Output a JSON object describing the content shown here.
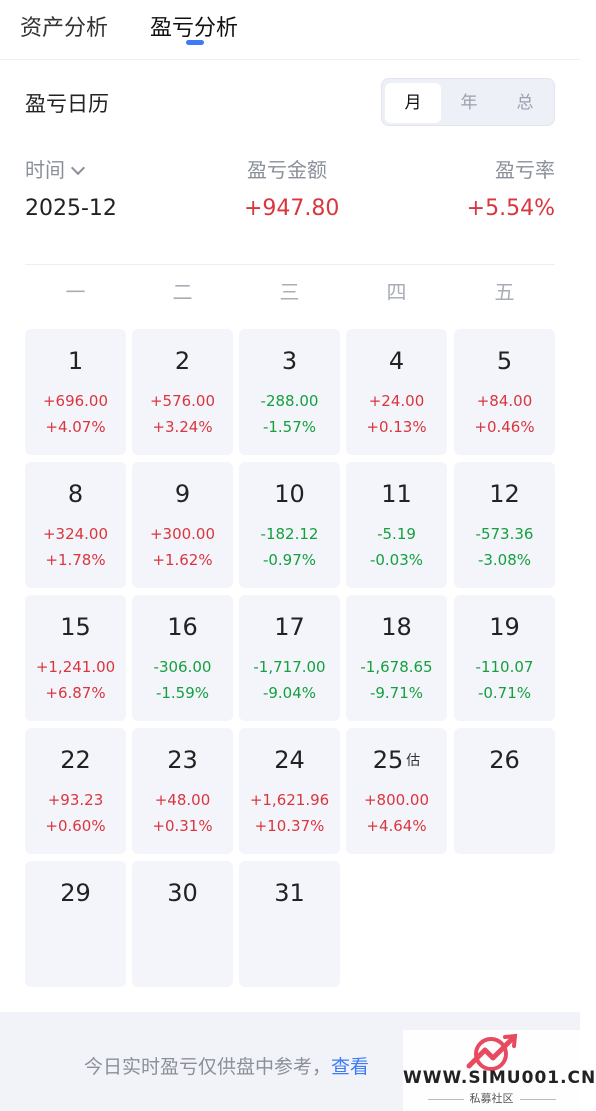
{
  "tabs": [
    {
      "label": "资产分析",
      "active": false
    },
    {
      "label": "盈亏分析",
      "active": true
    }
  ],
  "calendar_section": {
    "title": "盈亏日历",
    "segments": [
      {
        "label": "月",
        "active": true
      },
      {
        "label": "年",
        "active": false
      },
      {
        "label": "总",
        "active": false
      }
    ]
  },
  "summary": {
    "time_label": "时间",
    "time_value": "2025-12",
    "amount_label": "盈亏金额",
    "amount_value": "+947.80",
    "rate_label": "盈亏率",
    "rate_value": "+5.54%"
  },
  "weekdays": [
    "一",
    "二",
    "三",
    "四",
    "五"
  ],
  "days": [
    {
      "day": "1",
      "amount": "+696.00",
      "rate": "+4.07%",
      "trend": "up",
      "badge": ""
    },
    {
      "day": "2",
      "amount": "+576.00",
      "rate": "+3.24%",
      "trend": "up",
      "badge": ""
    },
    {
      "day": "3",
      "amount": "-288.00",
      "rate": "-1.57%",
      "trend": "down",
      "badge": ""
    },
    {
      "day": "4",
      "amount": "+24.00",
      "rate": "+0.13%",
      "trend": "up",
      "badge": ""
    },
    {
      "day": "5",
      "amount": "+84.00",
      "rate": "+0.46%",
      "trend": "up",
      "badge": ""
    },
    {
      "day": "8",
      "amount": "+324.00",
      "rate": "+1.78%",
      "trend": "up",
      "badge": ""
    },
    {
      "day": "9",
      "amount": "+300.00",
      "rate": "+1.62%",
      "trend": "up",
      "badge": ""
    },
    {
      "day": "10",
      "amount": "-182.12",
      "rate": "-0.97%",
      "trend": "down",
      "badge": ""
    },
    {
      "day": "11",
      "amount": "-5.19",
      "rate": "-0.03%",
      "trend": "down",
      "badge": ""
    },
    {
      "day": "12",
      "amount": "-573.36",
      "rate": "-3.08%",
      "trend": "down",
      "badge": ""
    },
    {
      "day": "15",
      "amount": "+1,241.00",
      "rate": "+6.87%",
      "trend": "up",
      "badge": ""
    },
    {
      "day": "16",
      "amount": "-306.00",
      "rate": "-1.59%",
      "trend": "down",
      "badge": ""
    },
    {
      "day": "17",
      "amount": "-1,717.00",
      "rate": "-9.04%",
      "trend": "down",
      "badge": ""
    },
    {
      "day": "18",
      "amount": "-1,678.65",
      "rate": "-9.71%",
      "trend": "down",
      "badge": ""
    },
    {
      "day": "19",
      "amount": "-110.07",
      "rate": "-0.71%",
      "trend": "down",
      "badge": ""
    },
    {
      "day": "22",
      "amount": "+93.23",
      "rate": "+0.60%",
      "trend": "up",
      "badge": ""
    },
    {
      "day": "23",
      "amount": "+48.00",
      "rate": "+0.31%",
      "trend": "up",
      "badge": ""
    },
    {
      "day": "24",
      "amount": "+1,621.96",
      "rate": "+10.37%",
      "trend": "up",
      "badge": ""
    },
    {
      "day": "25",
      "amount": "+800.00",
      "rate": "+4.64%",
      "trend": "up",
      "badge": "估"
    },
    {
      "day": "26",
      "amount": "",
      "rate": "",
      "trend": "none",
      "badge": ""
    },
    {
      "day": "29",
      "amount": "",
      "rate": "",
      "trend": "none",
      "badge": ""
    },
    {
      "day": "30",
      "amount": "",
      "rate": "",
      "trend": "none",
      "badge": ""
    },
    {
      "day": "31",
      "amount": "",
      "rate": "",
      "trend": "none",
      "badge": ""
    }
  ],
  "footer": {
    "notice_text": "今日实时盈亏仅供盘中参考，",
    "notice_link": "查看"
  },
  "watermark": {
    "text": "WWW.SIMU001.CN",
    "sub": "私募社区"
  },
  "colors": {
    "accent": "#3d7bf7",
    "up": "#d9363e",
    "down": "#14a03e",
    "cell_bg": "#f4f5fb"
  }
}
